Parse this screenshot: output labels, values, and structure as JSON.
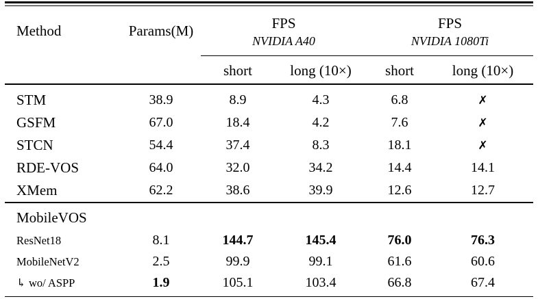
{
  "table": {
    "cross_symbol": "✗",
    "header": {
      "method": "Method",
      "params": "Params(M)",
      "groups": [
        {
          "title": "FPS",
          "device": "NVIDIA A40"
        },
        {
          "title": "FPS",
          "device": "NVIDIA 1080Ti"
        }
      ],
      "subcols": [
        "short",
        "long (10×)",
        "short",
        "long (10×)"
      ]
    },
    "sections": [
      {
        "rows": [
          {
            "method": "STM",
            "params": "38.9",
            "fps": [
              "8.9",
              "4.3",
              "6.8",
              "✗"
            ]
          },
          {
            "method": "GSFM",
            "params": "67.0",
            "fps": [
              "18.4",
              "4.2",
              "7.6",
              "✗"
            ]
          },
          {
            "method": "STCN",
            "params": "54.4",
            "fps": [
              "37.4",
              "8.3",
              "18.1",
              "✗"
            ]
          },
          {
            "method": "RDE-VOS",
            "params": "64.0",
            "fps": [
              "32.0",
              "34.2",
              "14.4",
              "14.1"
            ]
          },
          {
            "method": "XMem",
            "params": "62.2",
            "fps": [
              "38.6",
              "39.9",
              "12.6",
              "12.7"
            ]
          }
        ]
      },
      {
        "title": "MobileVOS",
        "rows": [
          {
            "method": "ResNet18",
            "small": true,
            "params": "8.1",
            "fps": [
              "144.7",
              "145.4",
              "76.0",
              "76.3"
            ],
            "fps_bold": [
              true,
              true,
              true,
              true
            ]
          },
          {
            "method": "MobileNetV2",
            "small": true,
            "params": "2.5",
            "fps": [
              "99.9",
              "99.1",
              "61.6",
              "60.6"
            ]
          },
          {
            "method": "↳ wo/ ASPP",
            "small": true,
            "params": "1.9",
            "params_bold": true,
            "fps": [
              "105.1",
              "103.4",
              "66.8",
              "67.4"
            ]
          }
        ]
      }
    ]
  }
}
